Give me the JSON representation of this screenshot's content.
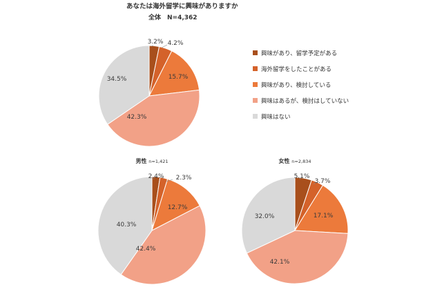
{
  "title": "あなたは海外留学に興味がありますか",
  "subtitle": "全体　N=4,362",
  "chart_data": [
    {
      "type": "pie",
      "name": "全体",
      "n_label": "N=4,362",
      "categories": [
        "興味があり、留学予定がある",
        "海外留学をしたことがある",
        "興味があり、検討している",
        "興味はあるが、検討はしていない",
        "興味はない"
      ],
      "values": [
        3.2,
        4.2,
        15.7,
        42.3,
        34.5
      ],
      "labels": [
        "3.2%",
        "4.2%",
        "15.7%",
        "42.3%",
        "34.5%"
      ],
      "colors": [
        "#a84f1c",
        "#d4622a",
        "#ec7a3b",
        "#f2a187",
        "#d9d9d9"
      ]
    },
    {
      "type": "pie",
      "name": "男性",
      "n_label": "n=1,421",
      "categories": [
        "興味があり、留学予定がある",
        "海外留学をしたことがある",
        "興味があり、検討している",
        "興味はあるが、検討はしていない",
        "興味はない"
      ],
      "values": [
        2.4,
        2.3,
        12.7,
        42.4,
        40.3
      ],
      "labels": [
        "2.4%",
        "2.3%",
        "12.7%",
        "42.4%",
        "40.3%"
      ],
      "colors": [
        "#a84f1c",
        "#d4622a",
        "#ec7a3b",
        "#f2a187",
        "#d9d9d9"
      ]
    },
    {
      "type": "pie",
      "name": "女性",
      "n_label": "n=2,834",
      "categories": [
        "興味があり、留学予定がある",
        "海外留学をしたことがある",
        "興味があり、検討している",
        "興味はあるが、検討はしていない",
        "興味はない"
      ],
      "values": [
        5.1,
        3.7,
        17.1,
        42.1,
        32.0
      ],
      "labels": [
        "5.1%",
        "3.7%",
        "17.1%",
        "42.1%",
        "32.0%"
      ],
      "colors": [
        "#a84f1c",
        "#d4622a",
        "#ec7a3b",
        "#f2a187",
        "#d9d9d9"
      ]
    }
  ],
  "legend": {
    "placement": "right",
    "items": [
      {
        "label": "興味があり、留学予定がある",
        "color": "#a84f1c"
      },
      {
        "label": "海外留学をしたことがある",
        "color": "#d4622a"
      },
      {
        "label": "興味があり、検討している",
        "color": "#ec7a3b"
      },
      {
        "label": "興味はあるが、検討はしていない",
        "color": "#f2a187"
      },
      {
        "label": "興味はない",
        "color": "#d9d9d9"
      }
    ]
  }
}
